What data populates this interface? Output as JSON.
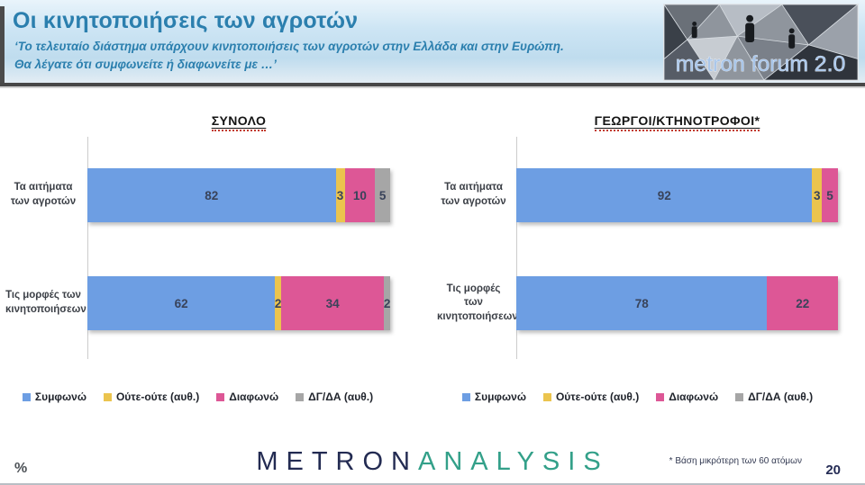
{
  "header": {
    "title": "Οι κινητοποιήσεις των αγροτών",
    "subtitle_lines": [
      "‘Το τελευταίο διάστημα υπάρχουν κινητοποιήσεις των αγροτών στην Ελλάδα και στην Ευρώπη.",
      "Θα λέγατε ότι συμφωνείτε ή διαφωνείτε με …’"
    ],
    "logo_text": "metron forum 2.0"
  },
  "chart_data": [
    {
      "type": "bar",
      "orientation": "horizontal",
      "stacked": true,
      "title": "ΣΥΝΟΛΟ",
      "unit": "%",
      "xlim": [
        0,
        100
      ],
      "grid": false,
      "legend_position": "bottom",
      "categories": [
        "Τα αιτήματα των αγροτών",
        "Τις μορφές των κινητοποιήσεων"
      ],
      "series": [
        {
          "name": "Συμφωνώ",
          "color": "#6D9EE3",
          "values": [
            82,
            62
          ]
        },
        {
          "name": "Ούτε-ούτε (αυθ.)",
          "color": "#EBC44E",
          "values": [
            3,
            2
          ]
        },
        {
          "name": "Διαφωνώ",
          "color": "#DD5796",
          "values": [
            10,
            34
          ]
        },
        {
          "name": "ΔΓ/ΔΑ (αυθ.)",
          "color": "#A6A6A6",
          "values": [
            5,
            2
          ]
        }
      ]
    },
    {
      "type": "bar",
      "orientation": "horizontal",
      "stacked": true,
      "title": "ΓΕΩΡΓΟΙ/ΚΤΗΝΟΤΡΟΦΟΙ*",
      "unit": "%",
      "xlim": [
        0,
        100
      ],
      "grid": false,
      "legend_position": "bottom",
      "categories": [
        "Τα αιτήματα των αγροτών",
        "Τις μορφές των κινητοποιήσεων"
      ],
      "series": [
        {
          "name": "Συμφωνώ",
          "color": "#6D9EE3",
          "values": [
            92,
            78
          ]
        },
        {
          "name": "Ούτε-ούτε (αυθ.)",
          "color": "#EBC44E",
          "values": [
            3,
            0
          ]
        },
        {
          "name": "Διαφωνώ",
          "color": "#DD5796",
          "values": [
            5,
            22
          ]
        },
        {
          "name": "ΔΓ/ΔΑ (αυθ.)",
          "color": "#A6A6A6",
          "values": [
            0,
            0
          ]
        }
      ]
    }
  ],
  "footer": {
    "percent_label": "%",
    "brand_part1": "METRON",
    "brand_part2": "ANALYSIS",
    "footnote": "* Βάση μικρότερη των 60 ατόμων",
    "page_number": "20"
  },
  "colors": {
    "header_text": "#2b7fae",
    "brand_navy": "#232b52",
    "brand_green": "#33a089",
    "title_squiggle": "#c2392b"
  }
}
